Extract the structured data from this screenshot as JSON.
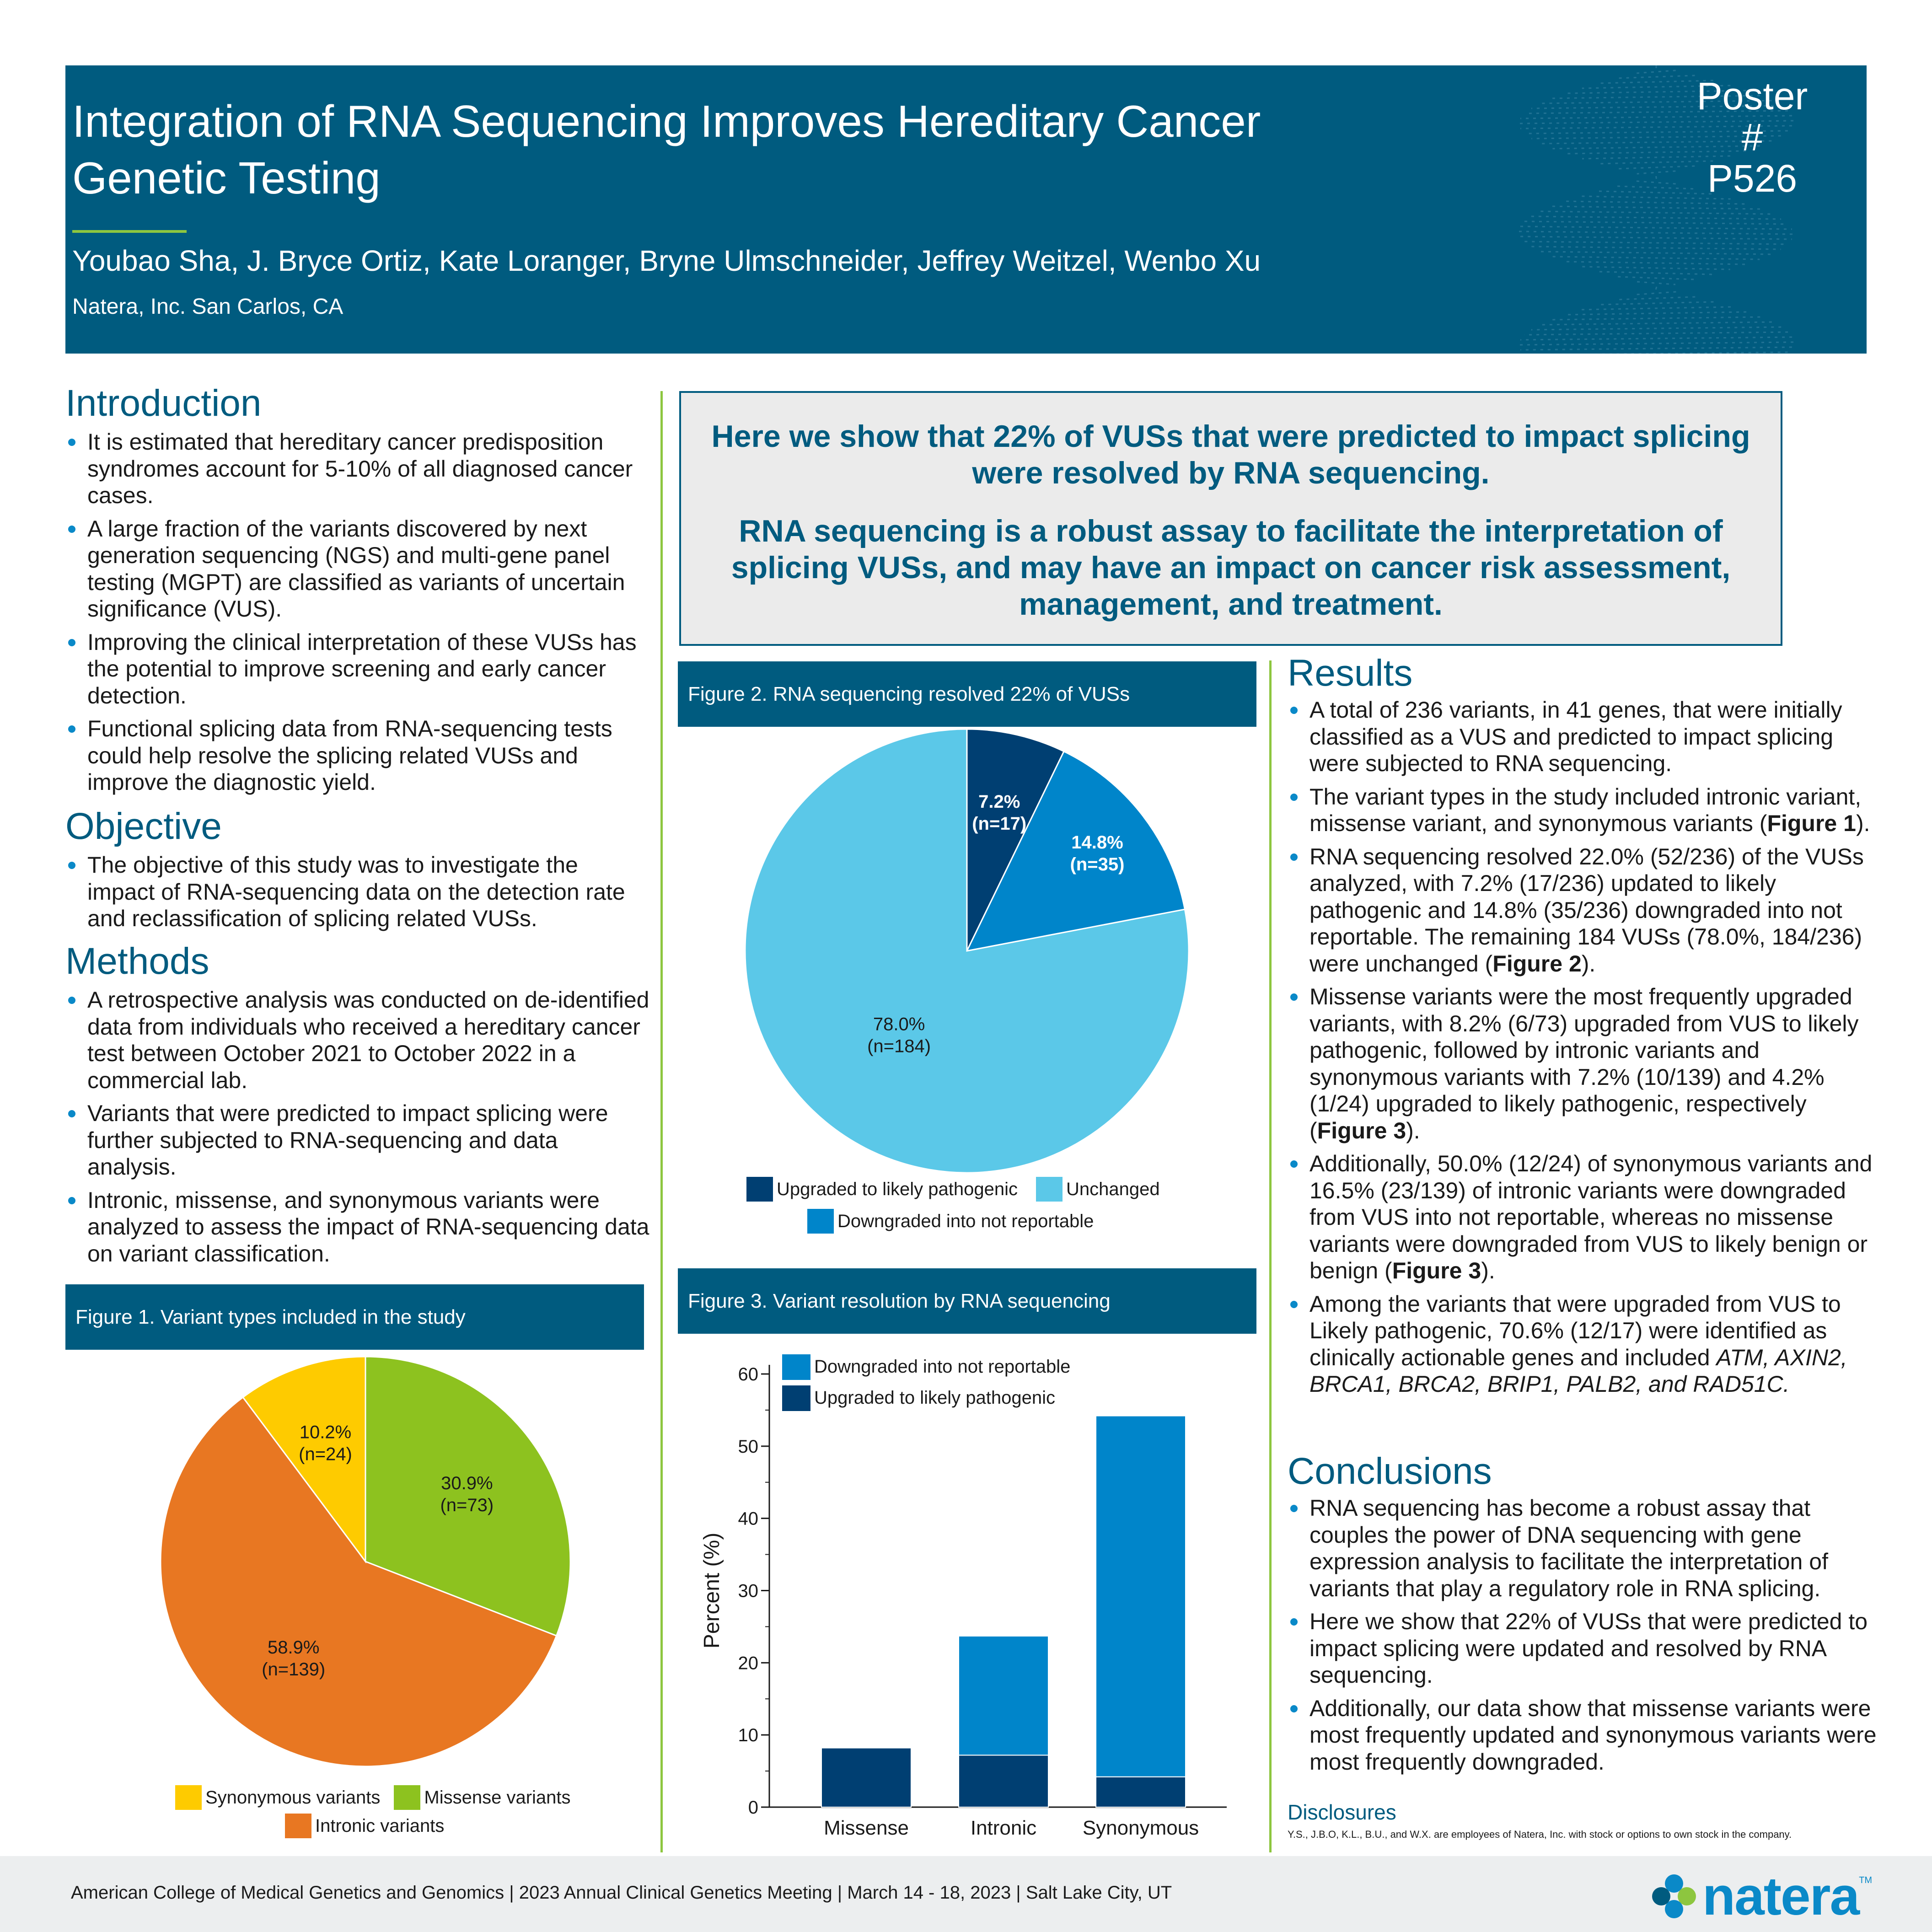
{
  "header": {
    "title_line1": "Integration of RNA Sequencing Improves Hereditary Cancer",
    "title_line2": "Genetic Testing",
    "authors": "Youbao Sha, J. Bryce Ortiz, Kate Loranger, Bryne Ulmschneider, Jeffrey Weitzel, Wenbo Xu",
    "affiliation": "Natera, Inc. San Carlos, CA",
    "poster_line1": "Poster #",
    "poster_line2": "P526"
  },
  "introduction": {
    "title": "Introduction",
    "bullets": [
      "It is estimated that hereditary cancer predisposition syndromes account for 5-10% of all diagnosed cancer cases.",
      "A large fraction of the variants discovered by next generation sequencing  (NGS) and multi-gene panel testing (MGPT) are classified as variants of uncertain significance (VUS).",
      "Improving the clinical interpretation of these VUSs has the potential to improve screening and early cancer detection.",
      "Functional splicing data from RNA-sequencing tests could help resolve the splicing related VUSs and improve the diagnostic yield."
    ]
  },
  "objective": {
    "title": "Objective",
    "bullets": [
      "The objective of this study was to investigate the impact of RNA-sequencing data on the detection rate and reclassification of splicing related VUSs."
    ]
  },
  "methods": {
    "title": "Methods",
    "bullets": [
      "A retrospective analysis was conducted on de-identified data from individuals who received a hereditary cancer test between October 2021 to October 2022 in a commercial lab.",
      "Variants that were predicted to impact splicing were further subjected to RNA-sequencing and data analysis.",
      "Intronic, missense, and synonymous variants were analyzed to assess the impact of RNA-sequencing data on variant classification."
    ]
  },
  "callout": {
    "line1": "Here we show that 22% of VUSs that were predicted to impact splicing were resolved by RNA sequencing.",
    "line2": "RNA sequencing is a robust assay to facilitate the interpretation of splicing VUSs, and may have an impact on cancer risk assessment, management, and treatment."
  },
  "figure1": {
    "title": "Figure 1. Variant types included in the study"
  },
  "figure2": {
    "title": "Figure 2. RNA sequencing resolved 22% of VUSs"
  },
  "figure3": {
    "title": "Figure 3. Variant resolution by RNA sequencing"
  },
  "chart_data": [
    {
      "type": "pie",
      "figure": "Figure 1",
      "slices": [
        {
          "name": "Missense variants",
          "value": 30.9,
          "n": 73,
          "label": "30.9%",
          "count_label": "(n=73)",
          "color": "#8dc21f"
        },
        {
          "name": "Intronic variants",
          "value": 58.9,
          "n": 139,
          "label": "58.9%",
          "count_label": "(n=139)",
          "color": "#e87722"
        },
        {
          "name": "Synonymous variants",
          "value": 10.2,
          "n": 24,
          "label": "10.2%",
          "count_label": "(n=24)",
          "color": "#fecb00"
        }
      ],
      "legend": [
        "Synonymous variants",
        "Missense variants",
        "Intronic variants"
      ],
      "legend_position": "bottom"
    },
    {
      "type": "pie",
      "figure": "Figure 2",
      "slices": [
        {
          "name": "Upgraded to likely pathogenic",
          "value": 7.2,
          "n": 17,
          "label": "7.2%",
          "count_label": "(n=17)",
          "color": "#003f72"
        },
        {
          "name": "Downgraded into not reportable",
          "value": 14.8,
          "n": 35,
          "label": "14.8%",
          "count_label": "(n=35)",
          "color": "#0085ca"
        },
        {
          "name": "Unchanged",
          "value": 78.0,
          "n": 184,
          "label": "78.0%",
          "count_label": "(n=184)",
          "color": "#5bc8e8"
        }
      ],
      "legend": [
        "Upgraded to likely pathogenic",
        "Unchanged",
        "Downgraded into not reportable"
      ],
      "legend_position": "bottom"
    },
    {
      "type": "bar",
      "stacked": true,
      "figure": "Figure 3",
      "categories": [
        "Missense",
        "Intronic",
        "Synonymous"
      ],
      "series": [
        {
          "name": "Upgraded to likely pathogenic",
          "values": [
            8.2,
            7.2,
            4.2
          ],
          "color": "#003f72"
        },
        {
          "name": "Downgraded into not reportable",
          "values": [
            0,
            16.5,
            50.0
          ],
          "color": "#0085ca"
        }
      ],
      "ylabel": "Percent (%)",
      "ylim": [
        0,
        60
      ],
      "yticks": [
        0,
        10,
        20,
        30,
        40,
        50,
        60
      ],
      "legend": [
        "Downgraded into not reportable",
        "Upgraded to likely pathogenic"
      ],
      "legend_position": "top-left",
      "grid": false
    }
  ],
  "results": {
    "title": "Results",
    "b1": "A total of 236 variants, in 41 genes, that were initially classified as a VUS and predicted to impact splicing were subjected to RNA sequencing.",
    "b2_pre": "The variant types in the study included intronic variant, missense variant, and synonymous variants (",
    "b2_ref": "Figure 1",
    "b2_post": ").",
    "b3_pre": "RNA sequencing resolved 22.0% (52/236) of the VUSs analyzed, with 7.2% (17/236) updated to likely pathogenic and 14.8% (35/236) downgraded into not reportable. The remaining 184 VUSs (78.0%, 184/236) were unchanged (",
    "b3_ref": "Figure 2",
    "b3_post": ").",
    "b4_pre": "Missense variants were the most frequently upgraded variants, with 8.2% (6/73) upgraded from VUS to likely pathogenic, followed by intronic variants and synonymous variants with 7.2% (10/139) and 4.2% (1/24) upgraded to likely pathogenic, respectively (",
    "b4_ref": "Figure 3",
    "b4_post": ").",
    "b5_pre": "Additionally, 50.0% (12/24) of synonymous variants and 16.5% (23/139) of intronic variants were downgraded from VUS into not reportable, whereas no missense variants were downgraded from VUS to likely benign or benign (",
    "b5_ref": "Figure 3",
    "b5_post": ").",
    "b6_pre": "Among the variants that were upgraded from VUS to Likely pathogenic, 70.6% (12/17) were identified as clinically actionable genes and included ",
    "b6_genes": "ATM, AXIN2, BRCA1, BRCA2, BRIP1, PALB2, and RAD51C."
  },
  "conclusions": {
    "title": "Conclusions",
    "bullets": [
      "RNA sequencing has become a robust assay that couples the power of DNA sequencing with gene expression analysis to facilitate the interpretation of variants that play a regulatory role in RNA splicing.",
      "Here we show that 22% of VUSs that were predicted to impact splicing were updated and resolved by RNA sequencing.",
      "Additionally, our data show that missense variants were most frequently updated and synonymous variants were most frequently downgraded."
    ]
  },
  "disclosures": {
    "title": "Disclosures",
    "text": "Y.S., J.B.O, K.L., B.U., and W.X. are employees of Natera, Inc. with stock or options to own stock in the company."
  },
  "footer": {
    "text": "American College of Medical Genetics and Genomics | 2023 Annual Clinical Genetics Meeting | March 14 - 18, 2023 | Salt Lake City, UT",
    "logo_text": "natera",
    "logo_tm": "TM"
  }
}
